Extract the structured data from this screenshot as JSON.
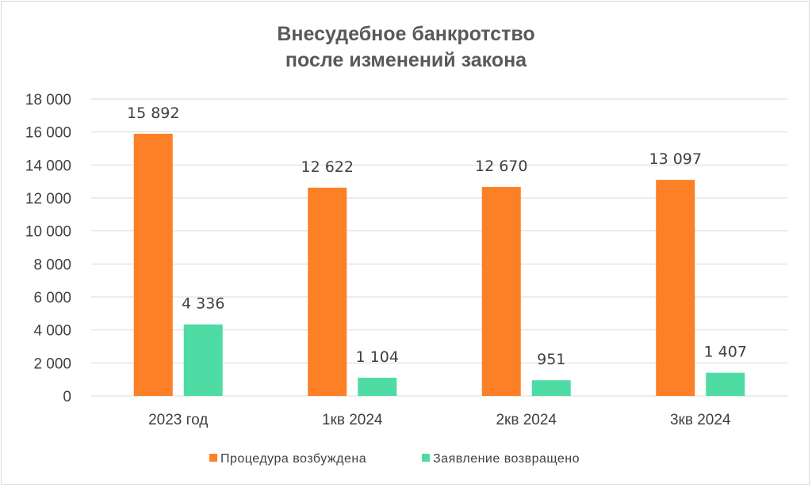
{
  "chart_data": {
    "type": "bar",
    "title_lines": [
      "Внесудебное банкротство",
      "после изменений закона"
    ],
    "categories": [
      "2023 год",
      "1кв 2024",
      "2кв 2024",
      "3кв 2024"
    ],
    "series": [
      {
        "name": "Процедура возбуждена",
        "values": [
          15892,
          12622,
          12670,
          13097
        ],
        "labels": [
          "15 892",
          "12 622",
          "12 670",
          "13 097"
        ],
        "color": "#fd7f26"
      },
      {
        "name": "Заявление возвращено",
        "values": [
          4336,
          1104,
          951,
          1407
        ],
        "labels": [
          "4 336",
          "1 104",
          "951",
          "1 407"
        ],
        "color": "#4fdca4"
      }
    ],
    "ylim": [
      0,
      18000
    ],
    "yticks": [
      0,
      2000,
      4000,
      6000,
      8000,
      10000,
      12000,
      14000,
      16000,
      18000
    ],
    "ytick_labels": [
      "0",
      "2 000",
      "4 000",
      "6 000",
      "8 000",
      "10 000",
      "12 000",
      "14 000",
      "16 000",
      "18 000"
    ],
    "grid": true,
    "legend_position": "bottom"
  }
}
